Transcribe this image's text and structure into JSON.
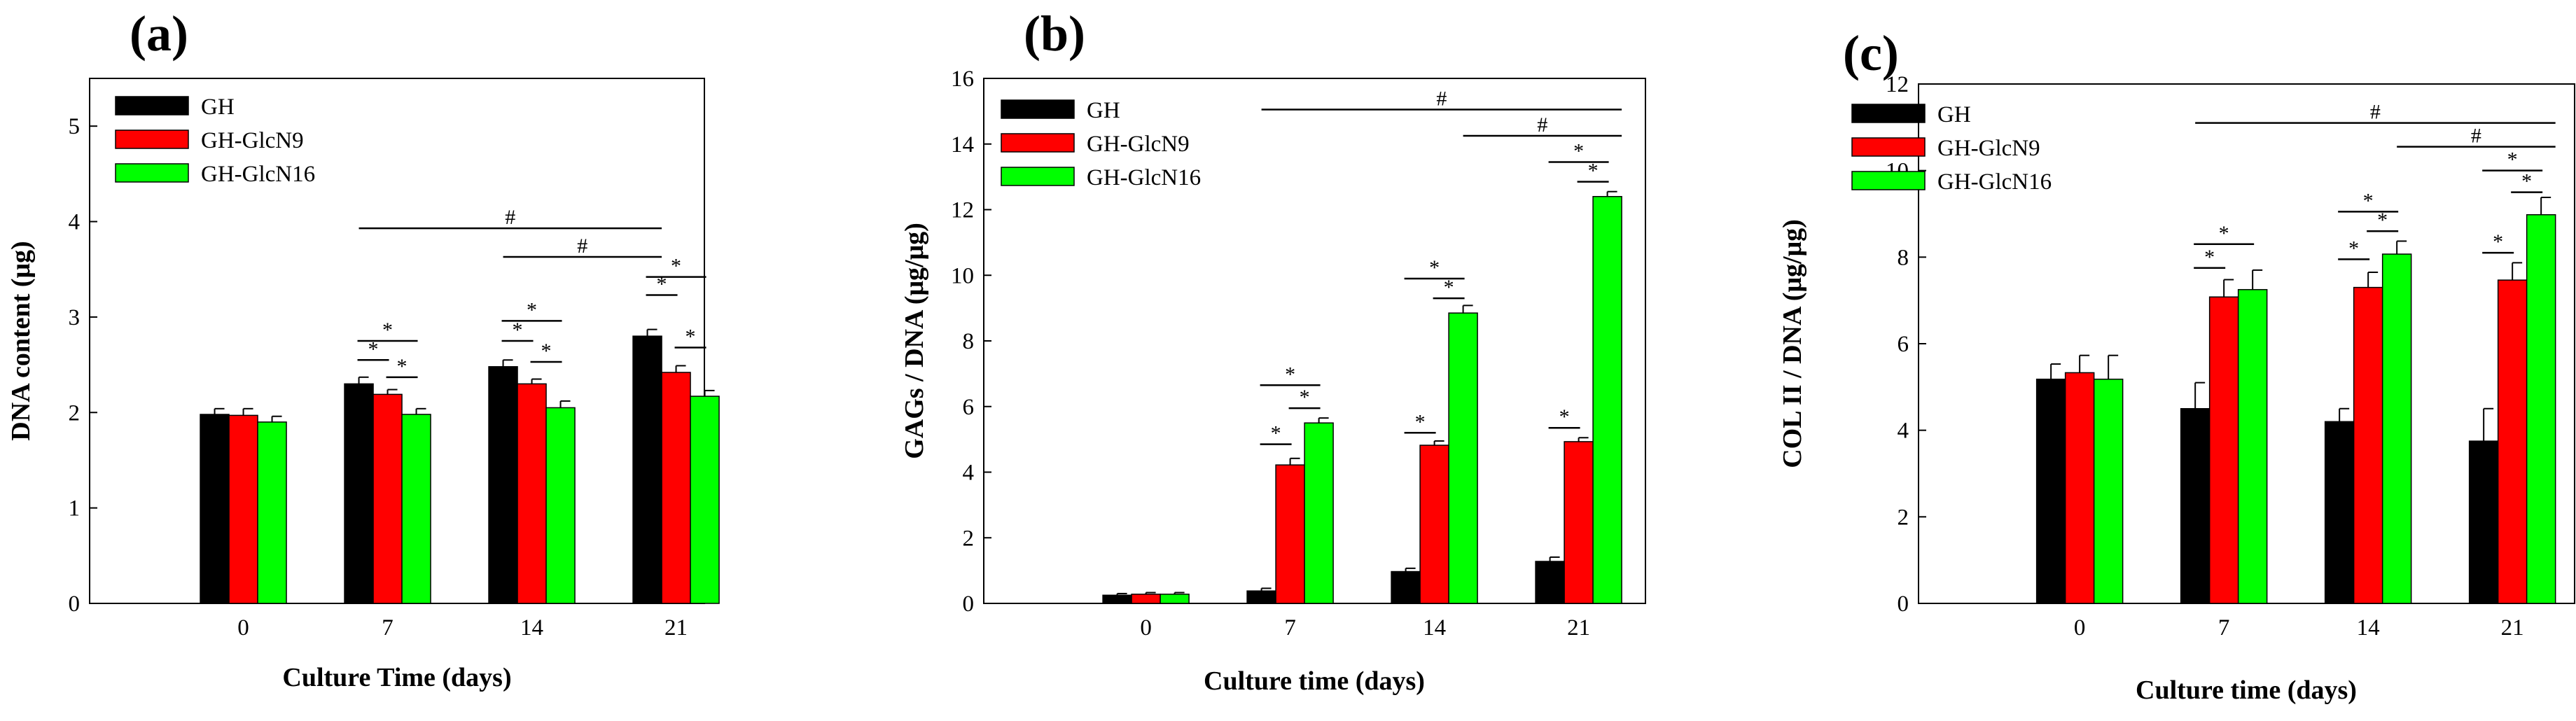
{
  "chart_data": [
    {
      "type": "bar",
      "panel_label": "(a)",
      "xlabel": "Culture Time (days)",
      "ylabel": "DNA content  (μg)",
      "ylim": [
        0,
        5.5
      ],
      "yticks": [
        0,
        1,
        2,
        3,
        4,
        5
      ],
      "categories": [
        "0",
        "7",
        "14",
        "21"
      ],
      "legend_position": "top-left",
      "series": [
        {
          "name": "GH",
          "color": "#000000",
          "values": [
            1.98,
            2.3,
            2.48,
            2.8
          ],
          "errors": [
            0.06,
            0.07,
            0.07,
            0.07
          ]
        },
        {
          "name": "GH-GlcN9",
          "color": "#ff0000",
          "values": [
            1.97,
            2.19,
            2.3,
            2.42
          ],
          "errors": [
            0.07,
            0.05,
            0.05,
            0.07
          ]
        },
        {
          "name": "GH-GlcN16",
          "color": "#00ff00",
          "values": [
            1.9,
            1.98,
            2.05,
            2.17
          ],
          "errors": [
            0.06,
            0.06,
            0.07,
            0.06
          ]
        }
      ],
      "annotations": [
        {
          "label": "*",
          "type": "bar",
          "from": [
            1,
            0
          ],
          "to": [
            1,
            1
          ],
          "level": 2.55
        },
        {
          "label": "*",
          "type": "bar",
          "from": [
            1,
            0
          ],
          "to": [
            1,
            2
          ],
          "level": 2.75
        },
        {
          "label": "*",
          "type": "bar",
          "from": [
            1,
            1
          ],
          "to": [
            1,
            2
          ],
          "level": 2.37
        },
        {
          "label": "*",
          "type": "bar",
          "from": [
            2,
            0
          ],
          "to": [
            2,
            1
          ],
          "level": 2.75
        },
        {
          "label": "*",
          "type": "bar",
          "from": [
            2,
            0
          ],
          "to": [
            2,
            2
          ],
          "level": 2.96
        },
        {
          "label": "*",
          "type": "bar",
          "from": [
            2,
            1
          ],
          "to": [
            2,
            2
          ],
          "level": 2.53
        },
        {
          "label": "*",
          "type": "bar",
          "from": [
            3,
            0
          ],
          "to": [
            3,
            1
          ],
          "level": 3.23
        },
        {
          "label": "*",
          "type": "bar",
          "from": [
            3,
            0
          ],
          "to": [
            3,
            2
          ],
          "level": 3.42
        },
        {
          "label": "*",
          "type": "bar",
          "from": [
            3,
            1
          ],
          "to": [
            3,
            2
          ],
          "level": 2.68
        },
        {
          "label": "#",
          "type": "span",
          "from": [
            1,
            0
          ],
          "to": [
            3,
            0
          ],
          "level": 3.93
        },
        {
          "label": "#",
          "type": "span",
          "from": [
            2,
            0
          ],
          "to": [
            3,
            0
          ],
          "level": 3.63
        }
      ]
    },
    {
      "type": "bar",
      "panel_label": "(b)",
      "xlabel": "Culture time (days)",
      "ylabel": "GAGs / DNA (μg/μg)",
      "ylim": [
        0,
        16
      ],
      "yticks": [
        0,
        2,
        4,
        6,
        8,
        10,
        12,
        14,
        16
      ],
      "categories": [
        "0",
        "7",
        "14",
        "21"
      ],
      "legend_position": "top-left",
      "series": [
        {
          "name": "GH",
          "color": "#000000",
          "values": [
            0.25,
            0.38,
            0.97,
            1.28
          ],
          "errors": [
            0.05,
            0.08,
            0.1,
            0.13
          ]
        },
        {
          "name": "GH-GlcN9",
          "color": "#ff0000",
          "values": [
            0.28,
            4.22,
            4.82,
            4.93
          ],
          "errors": [
            0.05,
            0.2,
            0.13,
            0.12
          ]
        },
        {
          "name": "GH-GlcN16",
          "color": "#00ff00",
          "values": [
            0.28,
            5.5,
            8.85,
            12.4
          ],
          "errors": [
            0.05,
            0.15,
            0.23,
            0.15
          ]
        }
      ],
      "annotations": [
        {
          "label": "*",
          "type": "bar",
          "from": [
            1,
            0
          ],
          "to": [
            1,
            1
          ],
          "level": 4.85
        },
        {
          "label": "*",
          "type": "bar",
          "from": [
            1,
            0
          ],
          "to": [
            1,
            2
          ],
          "level": 6.65
        },
        {
          "label": "*",
          "type": "bar",
          "from": [
            1,
            1
          ],
          "to": [
            1,
            2
          ],
          "level": 5.95
        },
        {
          "label": "*",
          "type": "bar",
          "from": [
            2,
            0
          ],
          "to": [
            2,
            1
          ],
          "level": 5.2
        },
        {
          "label": "*",
          "type": "bar",
          "from": [
            2,
            0
          ],
          "to": [
            2,
            2
          ],
          "level": 9.9
        },
        {
          "label": "*",
          "type": "bar",
          "from": [
            2,
            1
          ],
          "to": [
            2,
            2
          ],
          "level": 9.3
        },
        {
          "label": "*",
          "type": "bar",
          "from": [
            3,
            0
          ],
          "to": [
            3,
            1
          ],
          "level": 5.35
        },
        {
          "label": "*",
          "type": "bar",
          "from": [
            3,
            0
          ],
          "to": [
            3,
            2
          ],
          "level": 13.45
        },
        {
          "label": "*",
          "type": "bar",
          "from": [
            3,
            1
          ],
          "to": [
            3,
            2
          ],
          "level": 12.85
        },
        {
          "label": "#",
          "type": "span",
          "from": [
            1,
            0
          ],
          "to": [
            3,
            2
          ],
          "level": 15.05
        },
        {
          "label": "#",
          "type": "span",
          "from": [
            2,
            2
          ],
          "to": [
            3,
            2
          ],
          "level": 14.25
        }
      ]
    },
    {
      "type": "bar",
      "panel_label": "(c)",
      "xlabel": "Culture time (days)",
      "ylabel": "COL II / DNA (μg/μg)",
      "ylim": [
        0,
        12
      ],
      "yticks": [
        0,
        2,
        4,
        6,
        8,
        10,
        12
      ],
      "categories": [
        "0",
        "7",
        "14",
        "21"
      ],
      "legend_position": "top-left",
      "series": [
        {
          "name": "GH",
          "color": "#000000",
          "values": [
            5.18,
            4.5,
            4.2,
            3.75
          ],
          "errors": [
            0.35,
            0.6,
            0.3,
            0.75
          ]
        },
        {
          "name": "GH-GlcN9",
          "color": "#ff0000",
          "values": [
            5.33,
            7.08,
            7.3,
            7.47
          ],
          "errors": [
            0.4,
            0.4,
            0.35,
            0.4
          ]
        },
        {
          "name": "GH-GlcN16",
          "color": "#00ff00",
          "values": [
            5.18,
            7.25,
            8.07,
            8.98
          ],
          "errors": [
            0.55,
            0.45,
            0.3,
            0.4
          ]
        }
      ],
      "annotations": [
        {
          "label": "*",
          "type": "bar",
          "from": [
            1,
            0
          ],
          "to": [
            1,
            1
          ],
          "level": 7.75
        },
        {
          "label": "*",
          "type": "bar",
          "from": [
            1,
            0
          ],
          "to": [
            1,
            2
          ],
          "level": 8.3
        },
        {
          "label": "*",
          "type": "bar",
          "from": [
            2,
            0
          ],
          "to": [
            2,
            1
          ],
          "level": 7.95
        },
        {
          "label": "*",
          "type": "bar",
          "from": [
            2,
            0
          ],
          "to": [
            2,
            2
          ],
          "level": 9.05
        },
        {
          "label": "*",
          "type": "bar",
          "from": [
            2,
            1
          ],
          "to": [
            2,
            2
          ],
          "level": 8.6
        },
        {
          "label": "*",
          "type": "bar",
          "from": [
            3,
            0
          ],
          "to": [
            3,
            1
          ],
          "level": 8.1
        },
        {
          "label": "*",
          "type": "bar",
          "from": [
            3,
            0
          ],
          "to": [
            3,
            2
          ],
          "level": 10.0
        },
        {
          "label": "*",
          "type": "bar",
          "from": [
            3,
            1
          ],
          "to": [
            3,
            2
          ],
          "level": 9.5
        },
        {
          "label": "#",
          "type": "span",
          "from": [
            1,
            0
          ],
          "to": [
            3,
            2
          ],
          "level": 11.1
        },
        {
          "label": "#",
          "type": "span",
          "from": [
            2,
            2
          ],
          "to": [
            3,
            2
          ],
          "level": 10.55
        }
      ]
    }
  ]
}
